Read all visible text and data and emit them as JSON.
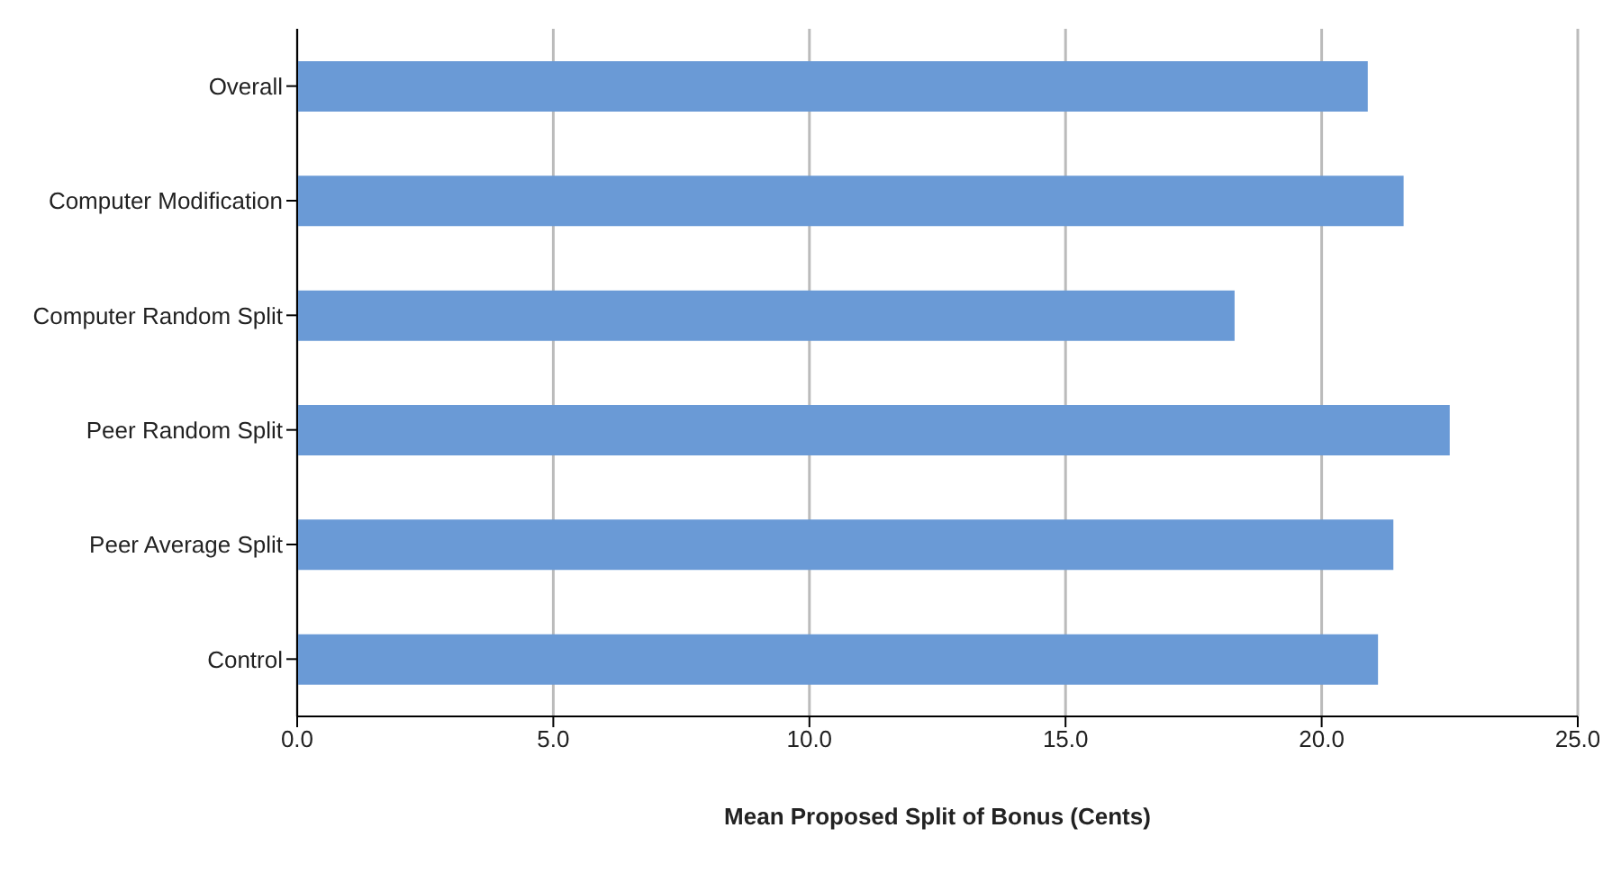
{
  "chart_data": {
    "type": "bar",
    "orientation": "horizontal",
    "categories": [
      "Overall",
      "Computer Modification",
      "Computer Random Split",
      "Peer Random Split",
      "Peer Average Split",
      "Control"
    ],
    "values": [
      20.9,
      21.6,
      18.3,
      22.5,
      21.4,
      21.1
    ],
    "color": "#6a9ad6",
    "xlabel": "Mean Proposed Split of Bonus (Cents)",
    "xlim": [
      0,
      25
    ],
    "xticks": [
      {
        "value": 0,
        "label": "0.0"
      },
      {
        "value": 5,
        "label": "5.0"
      },
      {
        "value": 10,
        "label": "10.0"
      },
      {
        "value": 15,
        "label": "15.0"
      },
      {
        "value": 20,
        "label": "20.0"
      },
      {
        "value": 25,
        "label": "25.0"
      }
    ],
    "grid": "x"
  }
}
